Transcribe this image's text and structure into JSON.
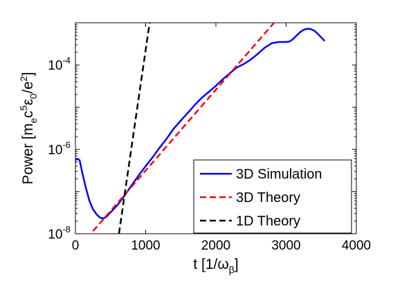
{
  "chart_data": {
    "type": "line",
    "title": "",
    "xlabel": {
      "main": "t [1/ω",
      "sub": "β",
      "tail": "]"
    },
    "ylabel": {
      "parts": [
        {
          "t": "Power [m",
          "s": "n"
        },
        {
          "t": "e",
          "s": "sub"
        },
        {
          "t": "c",
          "s": "n"
        },
        {
          "t": "5",
          "s": "sup"
        },
        {
          "t": "ε",
          "s": "n"
        },
        {
          "t": "0",
          "s": "sub"
        },
        {
          "t": "/e",
          "s": "n"
        },
        {
          "t": "2",
          "s": "sup"
        },
        {
          "t": "]",
          "s": "n"
        }
      ]
    },
    "xlim": [
      0,
      4000
    ],
    "ylim": [
      1e-08,
      0.001
    ],
    "yscale": "log",
    "grid": false,
    "legend_position": "bottom-right",
    "x_ticks": [
      {
        "value": 0,
        "label": "0"
      },
      {
        "value": 1000,
        "label": "1000"
      },
      {
        "value": 2000,
        "label": "2000"
      },
      {
        "value": 3000,
        "label": "3000"
      },
      {
        "value": 4000,
        "label": "4000"
      }
    ],
    "y_ticks": [
      {
        "value": 1e-08,
        "base": "10",
        "exp": "-8"
      },
      {
        "value": 1e-06,
        "base": "10",
        "exp": "-6"
      },
      {
        "value": 0.0001,
        "base": "10",
        "exp": "-4"
      }
    ],
    "series": [
      {
        "name": "3D Simulation",
        "color": "#0000ff",
        "dash": "solid",
        "x": [
          0,
          30,
          60,
          100,
          150,
          200,
          250,
          300,
          350,
          400,
          450,
          500,
          600,
          700,
          800,
          900,
          1000,
          1100,
          1200,
          1300,
          1400,
          1500,
          1600,
          1700,
          1800,
          1900,
          2000,
          2100,
          2200,
          2300,
          2400,
          2500,
          2600,
          2700,
          2800,
          2900,
          3000,
          3050,
          3100,
          3150,
          3200,
          3250,
          3300,
          3350,
          3400,
          3450,
          3500,
          3550
        ],
        "y": [
          5.5e-07,
          6e-07,
          5.5e-07,
          2.7e-07,
          1.2e-07,
          6e-08,
          3.8e-08,
          2.9e-08,
          2.4e-08,
          2.3e-08,
          2.6e-08,
          3.2e-08,
          4.8e-08,
          8e-08,
          1.4e-07,
          2.4e-07,
          4e-07,
          6.5e-07,
          1.1e-06,
          1.8e-06,
          3.1e-06,
          4.8e-06,
          7.3e-06,
          1.13e-05,
          1.67e-05,
          2.3e-05,
          3.2e-05,
          4.6e-05,
          6.4e-05,
          8.7e-05,
          0.000106,
          0.000135,
          0.000185,
          0.00026,
          0.00033,
          0.00035,
          0.00035,
          0.00036,
          0.00041,
          0.0005,
          0.0006,
          0.00068,
          0.00072,
          0.00071,
          0.00065,
          0.00055,
          0.00045,
          0.00037
        ]
      },
      {
        "name": "3D Theory",
        "color": "#ff0000",
        "dash": "dashed",
        "x": [
          250,
          2850
        ],
        "y": [
          1.15e-08,
          0.0011
        ]
      },
      {
        "name": "1D Theory",
        "color": "#000000",
        "dash": "dashed",
        "x": [
          620,
          1060
        ],
        "y": [
          1e-08,
          0.0011
        ]
      }
    ]
  }
}
